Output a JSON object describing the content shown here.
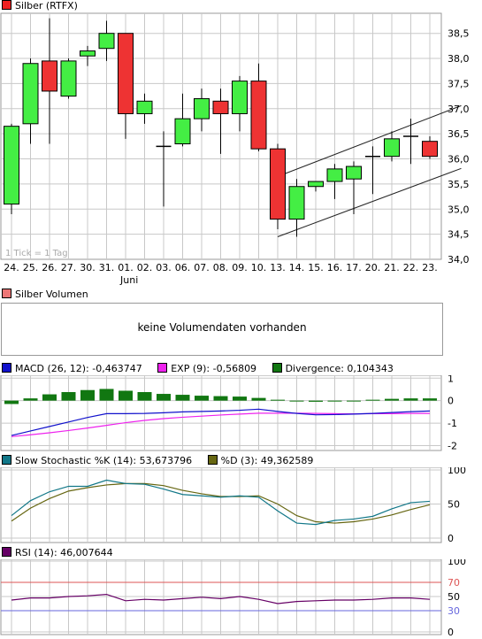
{
  "price": {
    "title": "Silber (RTFX)",
    "title_color": "#ee2222",
    "tick_note": "1 Tick = 1 Tag",
    "yticks": [
      "38,5",
      "38,0",
      "37,5",
      "37,0",
      "36,5",
      "36,0",
      "35,5",
      "35,0",
      "34,5",
      "34,0"
    ],
    "xticks": [
      "24.",
      "25.",
      "26.",
      "27.",
      "30.",
      "31.",
      "01.",
      "02.",
      "03.",
      "06.",
      "07.",
      "08.",
      "09.",
      "10.",
      "13.",
      "14.",
      "15.",
      "16.",
      "17.",
      "20.",
      "21.",
      "22.",
      "23."
    ],
    "month_label": "Juni",
    "up_color": "#44ee44",
    "down_color": "#ee3333"
  },
  "volume": {
    "title": "Silber Volumen",
    "message": "keine Volumendaten vorhanden"
  },
  "macd": {
    "legend": [
      {
        "label": "MACD (26, 12): -0,463747",
        "color": "#1111cc"
      },
      {
        "label": "EXP (9): -0,56809",
        "color": "#ee22ee"
      },
      {
        "label": "Divergence: 0,104343",
        "color": "#117711"
      }
    ],
    "yticks": [
      "1",
      "0",
      "-1",
      "-2"
    ]
  },
  "stoch": {
    "legend": [
      {
        "label": "Slow Stochastic %K (14): 53,673796",
        "color": "#117788"
      },
      {
        "label": "%D (3): 49,362589",
        "color": "#666611"
      }
    ],
    "yticks": [
      "100",
      "50",
      "0"
    ]
  },
  "rsi": {
    "legend": [
      {
        "label": "RSI (14): 46,007644",
        "color": "#660066"
      }
    ],
    "yticks": [
      "100",
      "70",
      "50",
      "30",
      "0"
    ],
    "ytick_colors": [
      "#000000",
      "#dd5555",
      "#000000",
      "#6666dd",
      "#000000"
    ]
  },
  "chart_data": [
    {
      "type": "candlestick",
      "title": "Silber (RTFX)",
      "x": [
        "24.",
        "25.",
        "26.",
        "27.",
        "30.",
        "31.",
        "01.",
        "02.",
        "03.",
        "06.",
        "07.",
        "08.",
        "09.",
        "10.",
        "13.",
        "14.",
        "15.",
        "16.",
        "17.",
        "20.",
        "21.",
        "22.",
        "23."
      ],
      "open": [
        35.1,
        36.7,
        37.95,
        37.25,
        38.05,
        38.2,
        38.5,
        36.9,
        36.25,
        36.3,
        36.8,
        37.15,
        36.9,
        37.55,
        36.2,
        34.8,
        35.45,
        35.55,
        35.6,
        36.05,
        36.05,
        36.45,
        36.35
      ],
      "high": [
        36.7,
        38.0,
        38.8,
        38.0,
        38.25,
        38.75,
        38.5,
        37.3,
        36.55,
        37.3,
        37.4,
        37.4,
        37.65,
        37.9,
        36.3,
        35.6,
        35.55,
        35.9,
        35.95,
        36.25,
        36.55,
        36.8,
        36.45
      ],
      "low": [
        34.9,
        36.3,
        36.3,
        37.2,
        37.85,
        37.95,
        36.4,
        36.7,
        35.05,
        36.25,
        36.55,
        36.1,
        36.55,
        36.15,
        34.6,
        34.45,
        35.35,
        35.2,
        34.9,
        35.3,
        35.95,
        35.9,
        36.0
      ],
      "close": [
        36.65,
        37.9,
        37.35,
        37.95,
        38.15,
        38.5,
        36.9,
        37.15,
        36.25,
        36.8,
        37.2,
        36.9,
        37.55,
        36.2,
        34.8,
        35.45,
        35.55,
        35.8,
        35.85,
        36.05,
        36.4,
        36.45,
        36.05
      ],
      "ylim": [
        34.0,
        38.9
      ],
      "trend_channel": {
        "upper": [
          [
            14,
            35.65
          ],
          [
            23,
            37.0
          ]
        ],
        "lower": [
          [
            14,
            34.45
          ],
          [
            23,
            35.75
          ]
        ]
      }
    },
    {
      "type": "line",
      "title": "MACD",
      "x": [
        "24.",
        "25.",
        "26.",
        "27.",
        "30.",
        "31.",
        "01.",
        "02.",
        "03.",
        "06.",
        "07.",
        "08.",
        "09.",
        "10.",
        "13.",
        "14.",
        "15.",
        "16.",
        "17.",
        "20.",
        "21.",
        "22.",
        "23."
      ],
      "series": [
        {
          "name": "MACD (26, 12)",
          "values": [
            -1.55,
            -1.35,
            -1.15,
            -0.95,
            -0.75,
            -0.58,
            -0.58,
            -0.57,
            -0.54,
            -0.5,
            -0.48,
            -0.46,
            -0.43,
            -0.38,
            -0.48,
            -0.57,
            -0.63,
            -0.62,
            -0.6,
            -0.57,
            -0.53,
            -0.49,
            -0.46
          ]
        },
        {
          "name": "EXP (9)",
          "values": [
            -1.6,
            -1.52,
            -1.43,
            -1.33,
            -1.22,
            -1.1,
            -0.98,
            -0.88,
            -0.8,
            -0.74,
            -0.69,
            -0.64,
            -0.6,
            -0.56,
            -0.56,
            -0.56,
            -0.57,
            -0.58,
            -0.59,
            -0.58,
            -0.58,
            -0.57,
            -0.57
          ]
        }
      ],
      "bars": {
        "name": "Divergence",
        "values": [
          -0.15,
          0.1,
          0.28,
          0.38,
          0.47,
          0.52,
          0.44,
          0.38,
          0.3,
          0.26,
          0.22,
          0.2,
          0.18,
          0.12,
          0.04,
          -0.02,
          -0.05,
          -0.04,
          0.0,
          0.04,
          0.08,
          0.1,
          0.1
        ]
      },
      "ylim": [
        -2.1,
        1.05
      ]
    },
    {
      "type": "line",
      "title": "Slow Stochastic",
      "x": [
        "24.",
        "25.",
        "26.",
        "27.",
        "30.",
        "31.",
        "01.",
        "02.",
        "03.",
        "06.",
        "07.",
        "08.",
        "09.",
        "10.",
        "13.",
        "14.",
        "15.",
        "16.",
        "17.",
        "20.",
        "21.",
        "22.",
        "23."
      ],
      "series": [
        {
          "name": "Slow Stochastic %K (14)",
          "values": [
            33,
            55,
            68,
            76,
            76,
            85,
            80,
            79,
            72,
            64,
            62,
            60,
            62,
            60,
            40,
            22,
            20,
            26,
            28,
            32,
            43,
            52,
            54
          ]
        },
        {
          "name": "%D (3)",
          "values": [
            25,
            44,
            58,
            69,
            74,
            78,
            80,
            80,
            77,
            70,
            65,
            61,
            61,
            62,
            50,
            33,
            24,
            22,
            24,
            28,
            34,
            42,
            49
          ]
        }
      ],
      "ylim": [
        0,
        100
      ]
    },
    {
      "type": "line",
      "title": "RSI",
      "x": [
        "24.",
        "25.",
        "26.",
        "27.",
        "30.",
        "31.",
        "01.",
        "02.",
        "03.",
        "06.",
        "07.",
        "08.",
        "09.",
        "10.",
        "13.",
        "14.",
        "15.",
        "16.",
        "17.",
        "20.",
        "21.",
        "22.",
        "23."
      ],
      "series": [
        {
          "name": "RSI (14)",
          "values": [
            45,
            48,
            48,
            50,
            51,
            53,
            44,
            46,
            45,
            47,
            49,
            47,
            50,
            46,
            40,
            43,
            44,
            45,
            45,
            46,
            48,
            48,
            46
          ]
        }
      ],
      "ylim": [
        0,
        100
      ],
      "reference_lines": [
        70,
        30
      ]
    }
  ]
}
